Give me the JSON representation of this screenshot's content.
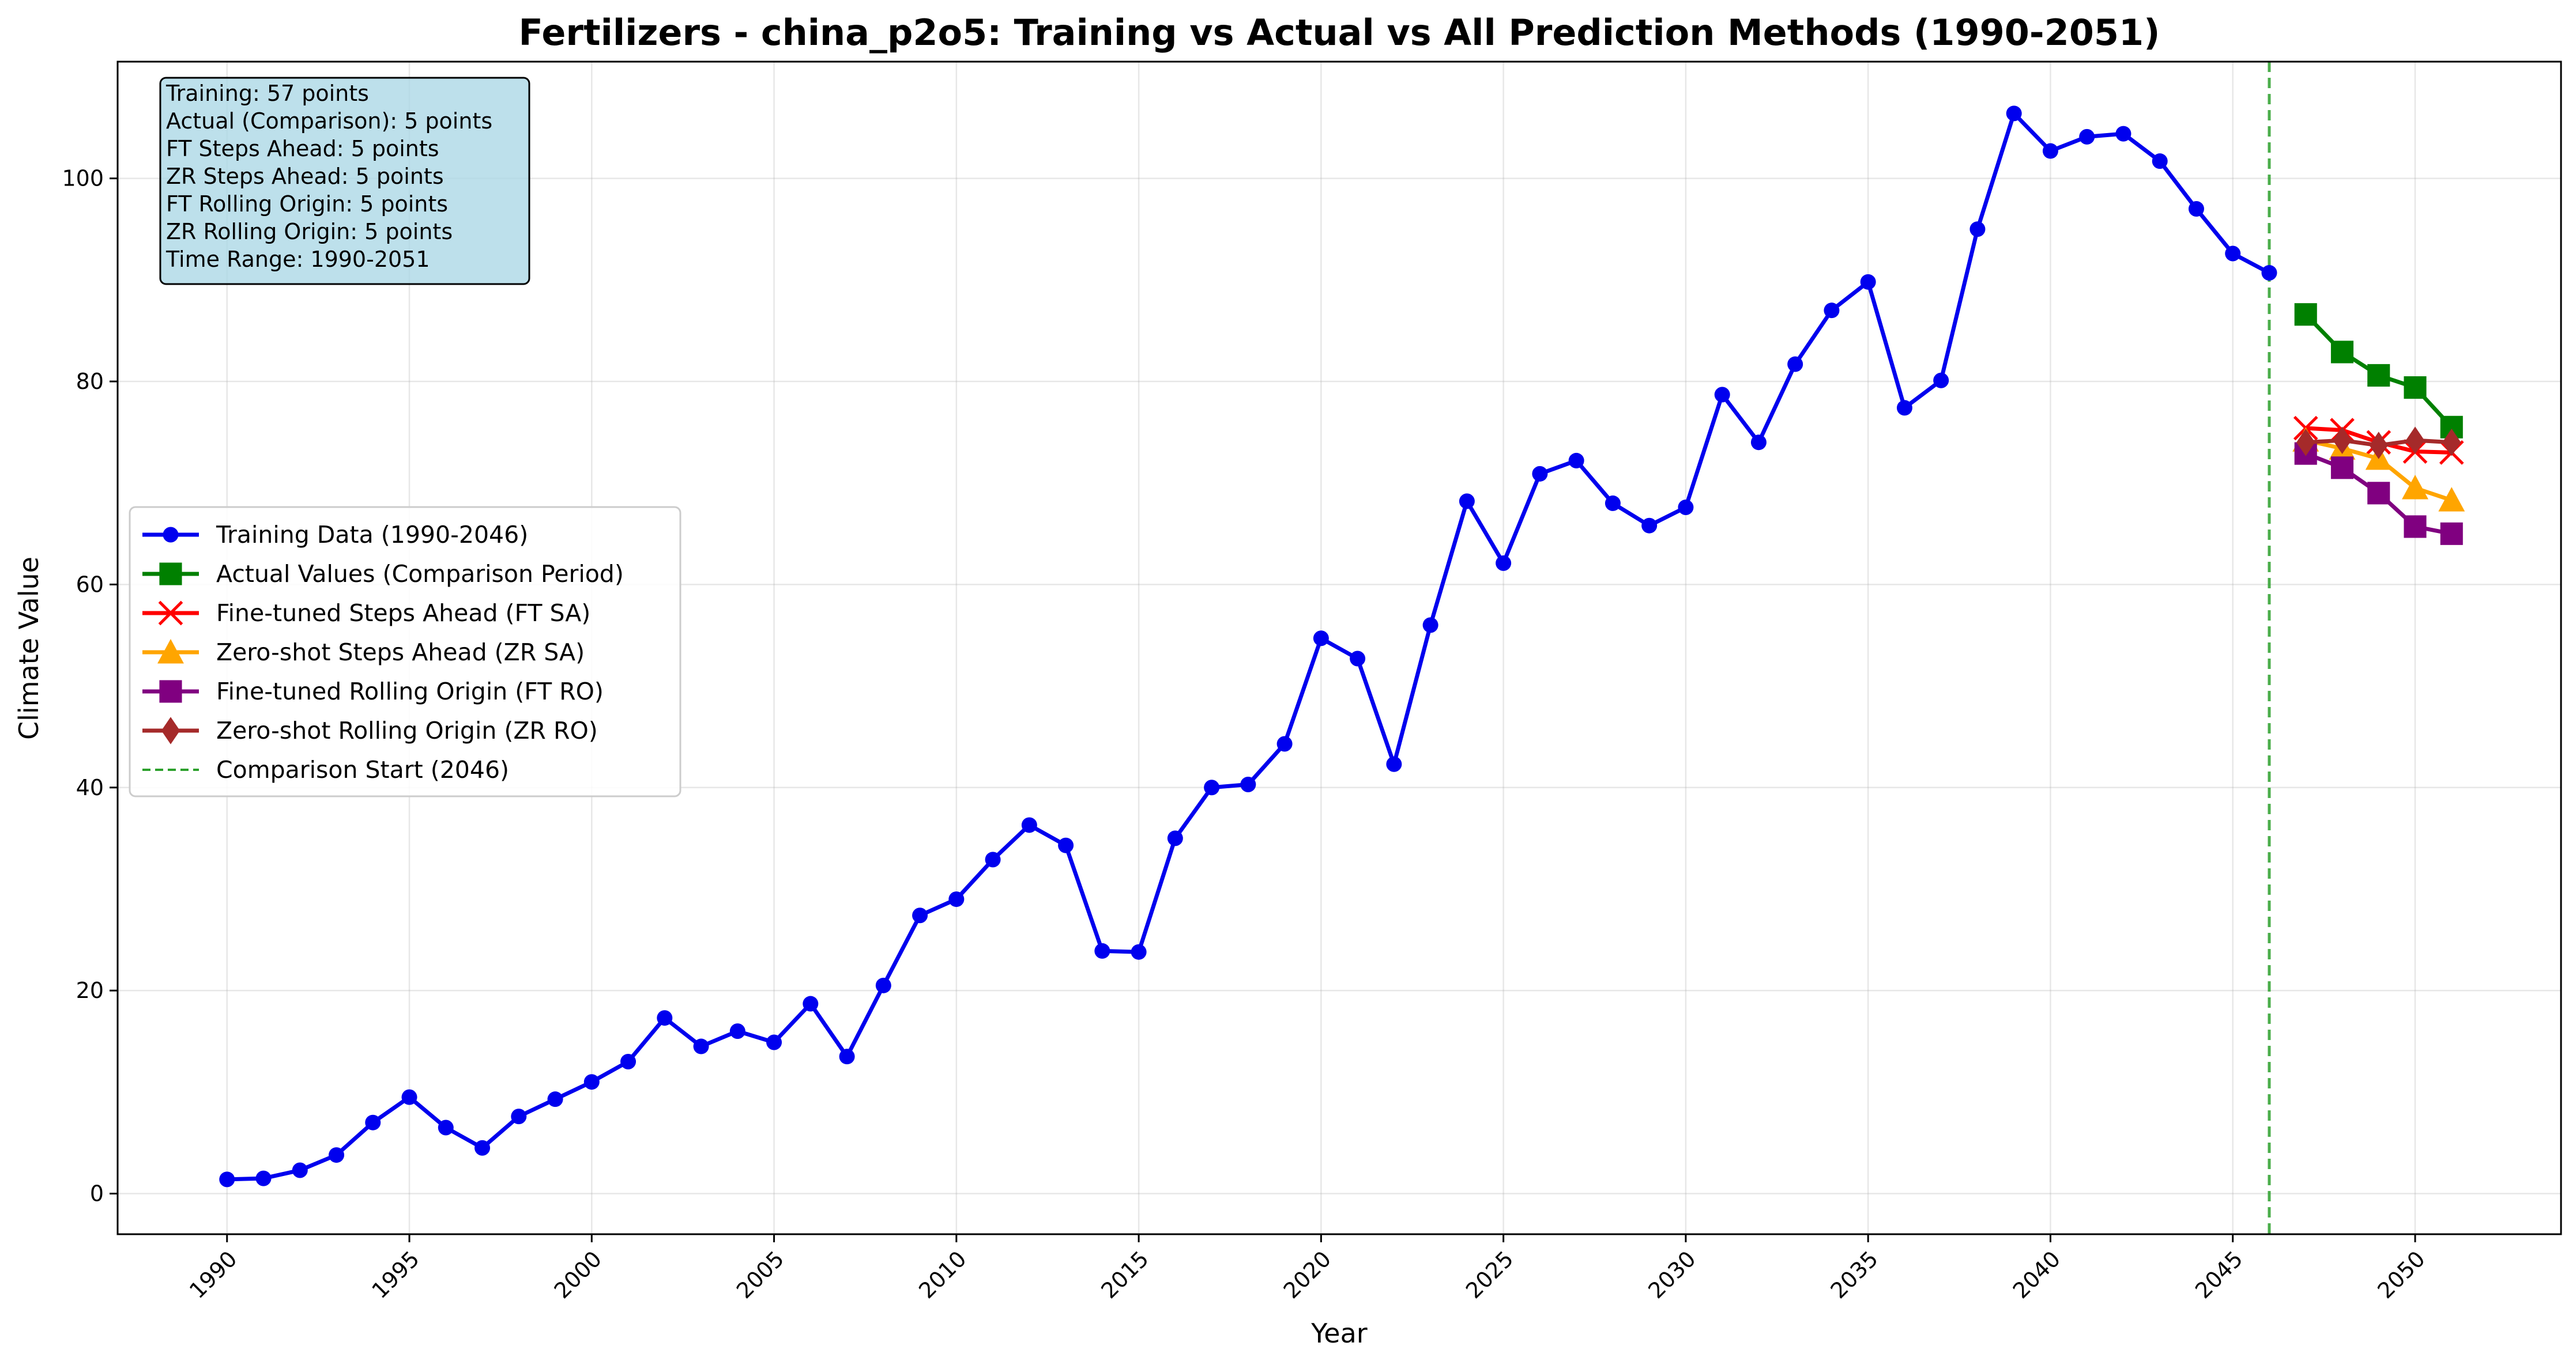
{
  "chart_data": {
    "type": "line",
    "title": "Fertilizers - china_p2o5: Training vs Actual vs All Prediction Methods (1990-2051)",
    "xlabel": "Year",
    "ylabel": "Climate Value",
    "xlim": [
      1987,
      2054
    ],
    "ylim": [
      -4,
      111.5
    ],
    "x_ticks": [
      1990,
      1995,
      2000,
      2005,
      2010,
      2015,
      2020,
      2025,
      2030,
      2035,
      2040,
      2045,
      2050
    ],
    "y_ticks": [
      0,
      20,
      40,
      60,
      80,
      100
    ],
    "grid": true,
    "legend_position": "center-left",
    "comparison_start": {
      "x": 2046,
      "label": "Comparison Start (2046)",
      "color": "#2ca02c"
    },
    "info_box": [
      "Training: 57 points",
      "Actual (Comparison): 5 points",
      "FT Steps Ahead: 5 points",
      "ZR Steps Ahead: 5 points",
      "FT Rolling Origin: 5 points",
      "ZR Rolling Origin: 5 points",
      "Time Range: 1990-2051"
    ],
    "series": [
      {
        "name": "Training Data (1990-2046)",
        "color": "#0000ee",
        "marker": "circle",
        "x": [
          1990,
          1991,
          1992,
          1993,
          1994,
          1995,
          1996,
          1997,
          1998,
          1999,
          2000,
          2001,
          2002,
          2003,
          2004,
          2005,
          2006,
          2007,
          2008,
          2009,
          2010,
          2011,
          2012,
          2013,
          2014,
          2015,
          2016,
          2017,
          2018,
          2019,
          2020,
          2021,
          2022,
          2023,
          2024,
          2025,
          2026,
          2027,
          2028,
          2029,
          2030,
          2031,
          2032,
          2033,
          2034,
          2035,
          2036,
          2037,
          2038,
          2039,
          2040,
          2041,
          2042,
          2043,
          2044,
          2045,
          2046
        ],
        "y": [
          1.4,
          1.5,
          2.3,
          3.8,
          7.0,
          9.5,
          6.5,
          4.5,
          7.6,
          9.3,
          11.0,
          13.0,
          17.3,
          14.5,
          16.0,
          14.9,
          18.7,
          13.5,
          20.5,
          27.4,
          29.0,
          32.9,
          36.3,
          34.3,
          23.9,
          23.8,
          35.0,
          40.0,
          40.3,
          44.3,
          54.7,
          52.7,
          42.3,
          56.0,
          68.2,
          62.1,
          70.9,
          72.2,
          68.0,
          65.8,
          67.6,
          78.7,
          74.0,
          81.7,
          87.0,
          89.8,
          77.4,
          80.1,
          95.0,
          106.4,
          102.7,
          104.1,
          104.4,
          101.7,
          97.0,
          92.6,
          90.7
        ]
      },
      {
        "name": "Actual Values (Comparison Period)",
        "color": "#008000",
        "marker": "square",
        "x": [
          2047,
          2048,
          2049,
          2050,
          2051
        ],
        "y": [
          86.6,
          82.9,
          80.6,
          79.4,
          75.5
        ]
      },
      {
        "name": "Fine-tuned Steps Ahead (FT SA)",
        "color": "#ff0000",
        "marker": "x",
        "x": [
          2047,
          2048,
          2049,
          2050,
          2051
        ],
        "y": [
          75.4,
          75.2,
          74.0,
          73.1,
          73.0
        ]
      },
      {
        "name": "Zero-shot Steps Ahead (ZR SA)",
        "color": "#ffa500",
        "marker": "triangle",
        "x": [
          2047,
          2048,
          2049,
          2050,
          2051
        ],
        "y": [
          74.2,
          73.4,
          72.4,
          69.5,
          68.3
        ]
      },
      {
        "name": "Fine-tuned Rolling Origin (FT RO)",
        "color": "#800080",
        "marker": "square",
        "x": [
          2047,
          2048,
          2049,
          2050,
          2051
        ],
        "y": [
          72.9,
          71.5,
          69.0,
          65.7,
          65.0
        ]
      },
      {
        "name": "Zero-shot Rolling Origin (ZR RO)",
        "color": "#a52a2a",
        "marker": "diamond",
        "x": [
          2047,
          2048,
          2049,
          2050,
          2051
        ],
        "y": [
          74.0,
          74.2,
          73.7,
          74.2,
          74.0
        ]
      }
    ]
  }
}
